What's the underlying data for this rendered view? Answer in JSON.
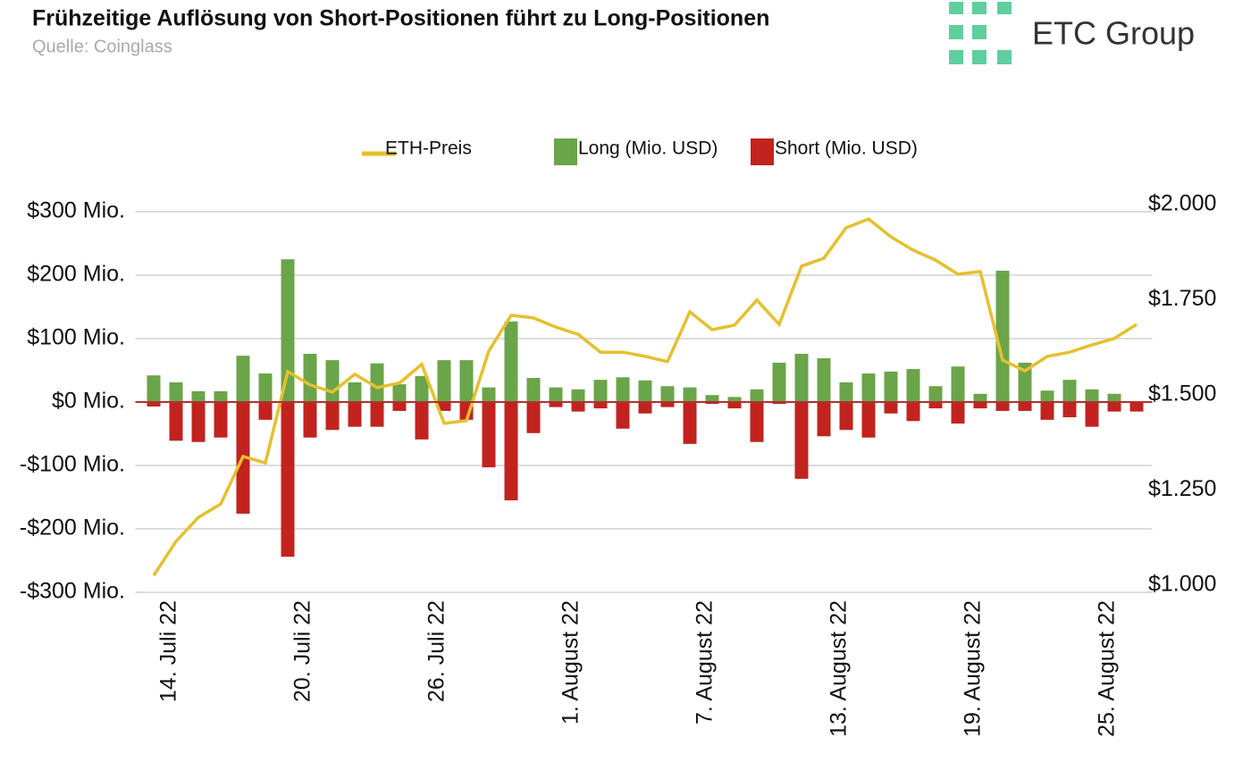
{
  "header": {
    "title": "Frühzeitige Auflösung von Short-Positionen führt zu Long-Positionen",
    "source": "Quelle: Coinglass",
    "logo": "ETC Group"
  },
  "chart_data": {
    "type": "bar",
    "categories": [
      "14. Juli 22",
      null,
      null,
      null,
      null,
      null,
      "20. Juli 22",
      null,
      null,
      null,
      null,
      null,
      "26. Juli 22",
      null,
      null,
      null,
      null,
      null,
      "1. August 22",
      null,
      null,
      null,
      null,
      null,
      "7. August 22",
      null,
      null,
      null,
      null,
      null,
      "13. August 22",
      null,
      null,
      null,
      null,
      null,
      "19. August 22",
      null,
      null,
      null,
      null,
      null,
      "25. August 22",
      null,
      null
    ],
    "series": [
      {
        "name": "ETH-Preis",
        "type": "line",
        "axis": "y2",
        "color": "#e6c02e",
        "values": [
          1044,
          1134,
          1197,
          1232,
          1357,
          1340,
          1580,
          1545,
          1526,
          1573,
          1538,
          1550,
          1599,
          1444,
          1451,
          1634,
          1728,
          1721,
          1697,
          1678,
          1631,
          1631,
          1620,
          1606,
          1737,
          1690,
          1702,
          1768,
          1704,
          1857,
          1878,
          1958,
          1981,
          1934,
          1899,
          1873,
          1836,
          1843,
          1610,
          1582,
          1620,
          1631,
          1650,
          1667,
          1704
        ]
      },
      {
        "name": "Long (Mio. USD)",
        "color": "#6aa54a",
        "values": [
          42,
          31,
          17,
          17,
          73,
          45,
          225,
          76,
          66,
          31,
          61,
          28,
          41,
          66,
          66,
          23,
          127,
          38,
          23,
          20,
          35,
          39,
          34,
          25,
          23,
          11,
          8,
          20,
          62,
          76,
          69,
          31,
          45,
          48,
          52,
          25,
          56,
          13,
          207,
          62,
          18,
          35,
          20,
          13,
          0
        ]
      },
      {
        "name": "Short (Mio. USD)",
        "color": "#c2231e",
        "values": [
          -7,
          -61,
          -63,
          -56,
          -176,
          -28,
          -244,
          -56,
          -44,
          -39,
          -39,
          -14,
          -59,
          -14,
          -28,
          -103,
          -155,
          -49,
          -8,
          -15,
          -10,
          -42,
          -18,
          -8,
          -66,
          -3,
          -10,
          -63,
          -3,
          -121,
          -54,
          -44,
          -56,
          -18,
          -30,
          -10,
          -34,
          -10,
          -14,
          -14,
          -28,
          -24,
          -39,
          -15,
          -15
        ]
      }
    ],
    "ylim": [
      -300,
      300
    ],
    "yticks": [
      {
        "value": -300,
        "label": "-$300 Mio."
      },
      {
        "value": -200,
        "label": "-$200 Mio."
      },
      {
        "value": -100,
        "label": "-$100 Mio."
      },
      {
        "value": 0,
        "label": "$0 Mio."
      },
      {
        "value": 100,
        "label": "$100 Mio."
      },
      {
        "value": 200,
        "label": "$200 Mio."
      },
      {
        "value": 300,
        "label": "$300 Mio."
      }
    ],
    "y2lim": [
      1000,
      2000
    ],
    "y2ticks": [
      {
        "value": 1000,
        "label": "$1.000"
      },
      {
        "value": 1250,
        "label": "$1.250"
      },
      {
        "value": 1500,
        "label": "$1.500"
      },
      {
        "value": 1750,
        "label": "$1.750"
      },
      {
        "value": 2000,
        "label": "$2.000"
      }
    ],
    "grid": true
  }
}
